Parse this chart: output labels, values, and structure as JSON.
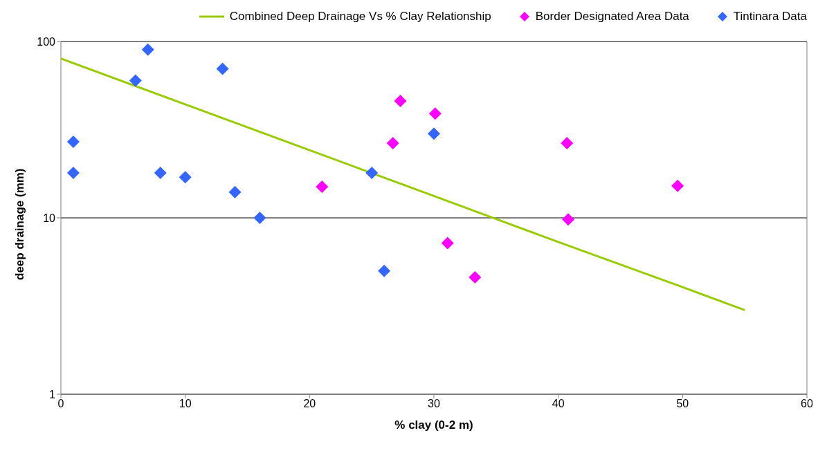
{
  "chart_data": {
    "type": "scatter",
    "xlabel": "% clay (0-2 m)",
    "ylabel": "deep drainage (mm)",
    "xlim": [
      0,
      60
    ],
    "xticks": [
      0,
      10,
      20,
      30,
      40,
      50,
      60
    ],
    "ylim": [
      1,
      100
    ],
    "yticks": [
      1,
      10,
      100
    ],
    "log": "y",
    "grid": "y",
    "legend": "top",
    "series": [
      {
        "name": "Combined Deep Drainage Vs % Clay Relationship",
        "type": "line",
        "marker": "none",
        "color": "#99cc00",
        "x": [
          0,
          10,
          20,
          30,
          40,
          50,
          55
        ],
        "values": [
          80,
          44,
          24.2,
          13.3,
          7.3,
          4.05,
          3
        ]
      },
      {
        "name": "Border Designated Area Data",
        "marker": "diamond",
        "color": "#ff00ff",
        "x": [
          21,
          27.3,
          26.7,
          30.1,
          31.1,
          33.3,
          40.7,
          40.8,
          49.6
        ],
        "values": [
          15,
          46,
          26.5,
          39,
          7.2,
          4.6,
          26.5,
          9.8,
          15.2
        ]
      },
      {
        "name": "Tintinara Data",
        "marker": "diamond",
        "color": "#3366ff",
        "x": [
          1,
          1,
          6,
          7,
          13,
          8,
          10,
          14,
          16,
          25,
          26,
          30
        ],
        "values": [
          27,
          18,
          60,
          90,
          70,
          18,
          17,
          14,
          10,
          18,
          5,
          30
        ]
      }
    ]
  }
}
